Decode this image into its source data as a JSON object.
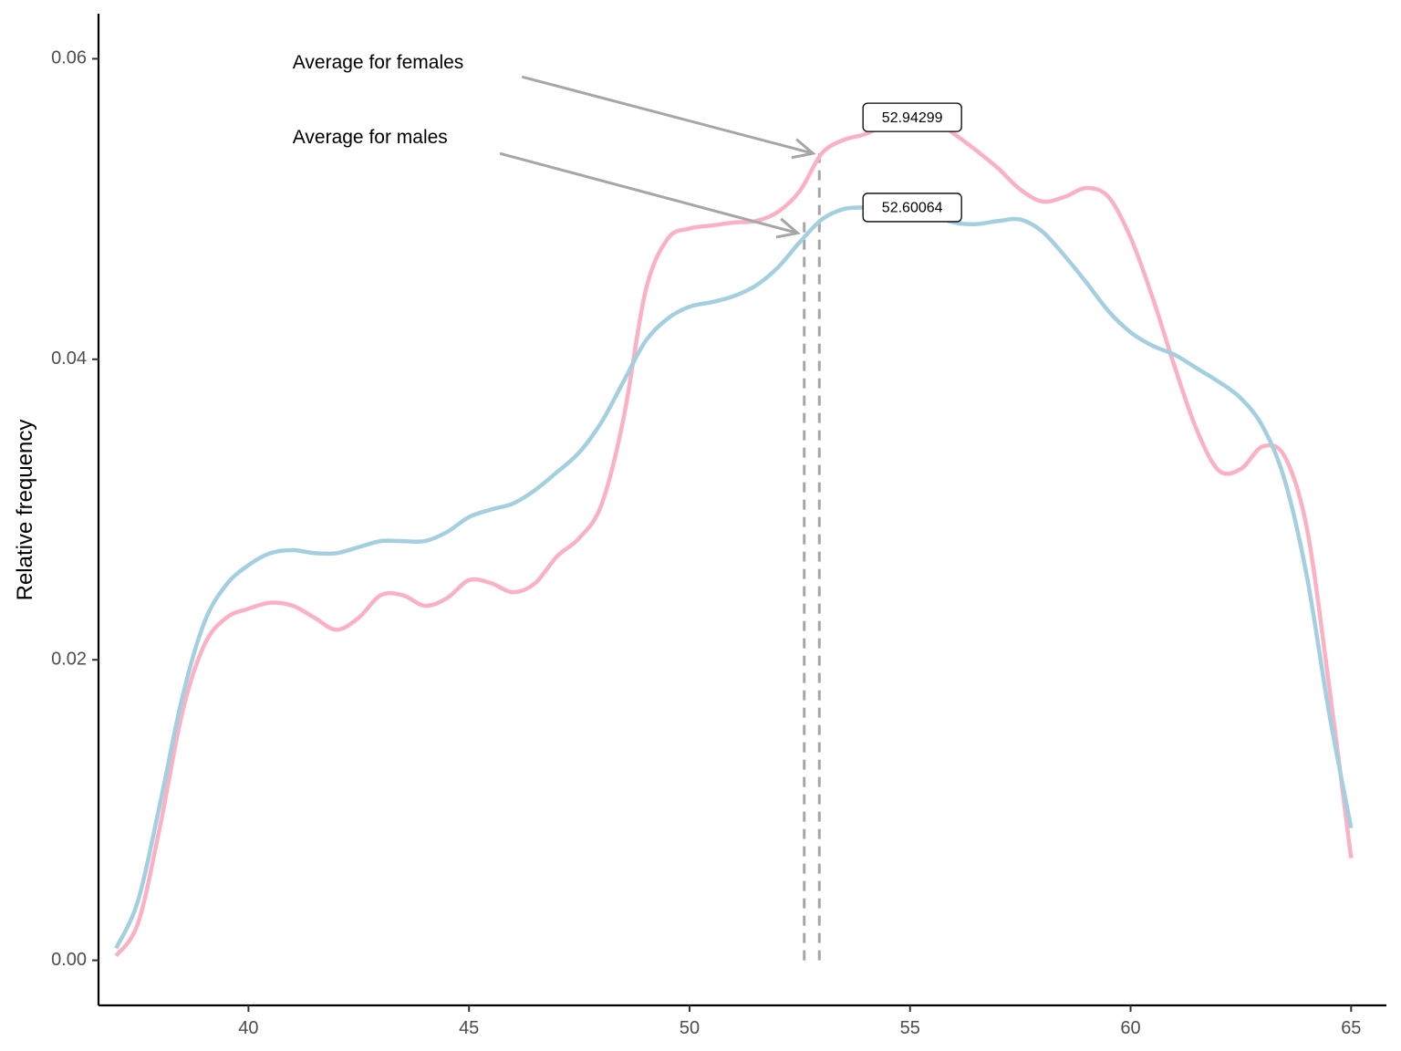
{
  "chart_data": {
    "type": "line",
    "title": "",
    "xlabel": "",
    "ylabel": "Relative frequency",
    "xlim": [
      36.6,
      65.8
    ],
    "ylim": [
      -0.003,
      0.063
    ],
    "x_ticks": [
      40,
      45,
      50,
      55,
      60,
      65
    ],
    "x_tick_labels": [
      "40",
      "45",
      "50",
      "55",
      "60",
      "65"
    ],
    "y_ticks": [
      0.0,
      0.02,
      0.04,
      0.06
    ],
    "y_tick_labels": [
      "0.00",
      "0.02",
      "0.04",
      "0.06"
    ],
    "grid": false,
    "legend": "none",
    "series": [
      {
        "color": "#FAB1C3",
        "x": [
          37,
          37.5,
          38,
          38.5,
          39,
          39.5,
          40,
          40.5,
          41,
          41.5,
          42,
          42.5,
          43,
          43.5,
          44,
          44.5,
          45,
          45.5,
          46,
          46.5,
          47,
          47.5,
          48,
          48.5,
          49,
          49.5,
          50,
          50.5,
          51,
          51.5,
          52,
          52.5,
          53,
          53.5,
          54,
          54.5,
          55,
          55.5,
          56,
          56.5,
          57,
          57.5,
          58,
          58.5,
          59,
          59.5,
          60,
          60.5,
          61,
          61.5,
          62,
          62.5,
          63,
          63.5,
          64,
          64.5,
          65
        ],
        "y": [
          0.0003,
          0.0025,
          0.009,
          0.0165,
          0.021,
          0.0228,
          0.0234,
          0.0238,
          0.0236,
          0.0228,
          0.022,
          0.0228,
          0.0243,
          0.0243,
          0.0236,
          0.0241,
          0.0253,
          0.0251,
          0.0245,
          0.0251,
          0.0269,
          0.0281,
          0.0303,
          0.036,
          0.0445,
          0.048,
          0.0487,
          0.0489,
          0.0491,
          0.0492,
          0.0498,
          0.0512,
          0.0537,
          0.0546,
          0.055,
          0.0557,
          0.0564,
          0.056,
          0.055,
          0.0539,
          0.0527,
          0.0513,
          0.0505,
          0.0508,
          0.0514,
          0.0508,
          0.0481,
          0.0441,
          0.0395,
          0.0353,
          0.0326,
          0.0327,
          0.0342,
          0.0335,
          0.0287,
          0.0183,
          0.0068
        ]
      },
      {
        "color": "#A3CFE0",
        "x": [
          37,
          37.5,
          38,
          38.5,
          39,
          39.5,
          40,
          40.5,
          41,
          41.5,
          42,
          42.5,
          43,
          43.5,
          44,
          44.5,
          45,
          45.5,
          46,
          46.5,
          47,
          47.5,
          48,
          48.5,
          49,
          49.5,
          50,
          50.5,
          51,
          51.5,
          52,
          52.5,
          53,
          53.5,
          54,
          54.5,
          55,
          55.5,
          56,
          56.5,
          57,
          57.5,
          58,
          58.5,
          59,
          59.5,
          60,
          60.5,
          61,
          61.5,
          62,
          62.5,
          63,
          63.5,
          64,
          64.5,
          65
        ],
        "y": [
          0.0008,
          0.004,
          0.0105,
          0.0175,
          0.0225,
          0.025,
          0.0263,
          0.0271,
          0.0273,
          0.0271,
          0.0271,
          0.0275,
          0.0279,
          0.0279,
          0.0279,
          0.0285,
          0.0295,
          0.03,
          0.0304,
          0.0313,
          0.0325,
          0.0338,
          0.0358,
          0.0385,
          0.0412,
          0.0427,
          0.0435,
          0.0438,
          0.0442,
          0.0449,
          0.0461,
          0.0478,
          0.0493,
          0.05,
          0.0501,
          0.0501,
          0.05,
          0.0496,
          0.0491,
          0.049,
          0.0492,
          0.0493,
          0.0485,
          0.0469,
          0.0451,
          0.0432,
          0.0418,
          0.0409,
          0.0403,
          0.0394,
          0.0385,
          0.0374,
          0.0355,
          0.0319,
          0.0255,
          0.0165,
          0.0088
        ]
      }
    ],
    "vlines": [
      {
        "x": 52.60064,
        "y_from": 0.0,
        "y_to": 0.0494,
        "style": "dashed",
        "color": "#A6A6A6"
      },
      {
        "x": 52.94299,
        "y_from": 0.0,
        "y_to": 0.0537,
        "style": "dashed",
        "color": "#A6A6A6"
      }
    ],
    "annotations": [
      {
        "text": "Average for females",
        "text_x": 41.0,
        "text_y": 0.0597,
        "arrow_from": [
          46.2,
          0.0588
        ],
        "arrow_to": [
          52.8,
          0.0537
        ]
      },
      {
        "text": "Average for males",
        "text_x": 41.0,
        "text_y": 0.0547,
        "arrow_from": [
          45.7,
          0.0537
        ],
        "arrow_to": [
          52.45,
          0.0484
        ]
      }
    ],
    "value_labels": [
      {
        "text": "52.94299",
        "x": 55.05,
        "y": 0.0561
      },
      {
        "text": "52.60064",
        "x": 55.05,
        "y": 0.0501
      }
    ]
  }
}
